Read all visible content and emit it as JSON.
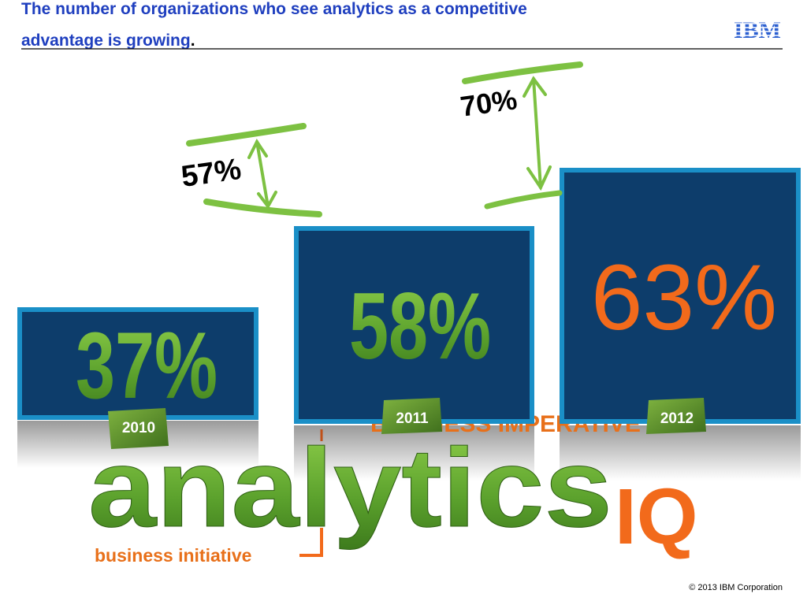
{
  "header": {
    "title_line1": "The number of organizations who see analytics as a competitive",
    "title_line2": "advantage is growing",
    "title_end": ".",
    "logo": "IBM"
  },
  "callouts": [
    {
      "label": "57%"
    },
    {
      "label": "70%"
    }
  ],
  "boxes": [
    {
      "value": "37%",
      "year": "2010"
    },
    {
      "value": "58%",
      "year": "2011"
    },
    {
      "value": "63%",
      "year": "2012"
    }
  ],
  "brand": {
    "hidden": "BUSINESS IMPERATIVE",
    "word": "analytics",
    "suffix": "IQ",
    "tagline": "business initiative"
  },
  "footer": {
    "copyright": "© 2013 IBM Corporation"
  }
}
